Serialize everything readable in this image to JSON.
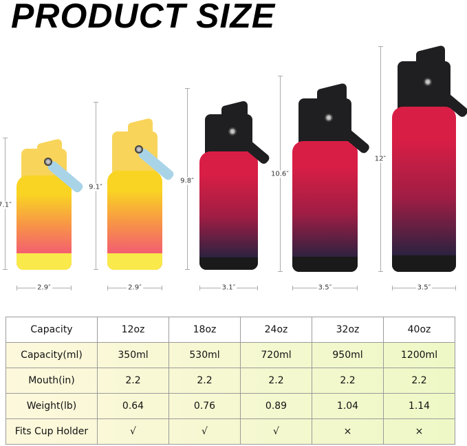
{
  "title": "PRODUCT SIZE",
  "bottles": [
    {
      "height": "7.1″",
      "width": "2.9″",
      "colors": {
        "top": "#f9d423",
        "mid": "#f7904a",
        "bottom": "#f2527a",
        "cap": "#f8d45a",
        "base": "#f9e94a",
        "strap": "#a9d4e8"
      }
    },
    {
      "height": "9.1″",
      "width": "2.9″",
      "colors": {
        "top": "#f9d423",
        "mid": "#f7904a",
        "bottom": "#f2527a",
        "cap": "#f8d45a",
        "base": "#f9e94a",
        "strap": "#a9d4e8"
      }
    },
    {
      "height": "9.8″",
      "width": "3.1″",
      "colors": {
        "top": "#d81e45",
        "mid": "#a01d44",
        "bottom": "#2b2240",
        "cap": "#1f1f22",
        "base": "#1a1a1a",
        "strap": "#1f1f22"
      }
    },
    {
      "height": "10.6″",
      "width": "3.5″",
      "colors": {
        "top": "#d81e45",
        "mid": "#a01d44",
        "bottom": "#2b2240",
        "cap": "#1f1f22",
        "base": "#1a1a1a",
        "strap": "#1f1f22"
      }
    },
    {
      "height": "12″",
      "width": "3.5″",
      "colors": {
        "top": "#d81e45",
        "mid": "#a01d44",
        "bottom": "#2b2240",
        "cap": "#1f1f22",
        "base": "#1a1a1a",
        "strap": "#1f1f22"
      }
    }
  ],
  "table": {
    "header": [
      "Capacity",
      "12oz",
      "18oz",
      "24oz",
      "32oz",
      "40oz"
    ],
    "rows": [
      [
        "Capacity(ml)",
        "350ml",
        "530ml",
        "720ml",
        "950ml",
        "1200ml"
      ],
      [
        "Mouth(in)",
        "2.2",
        "2.2",
        "2.2",
        "2.2",
        "2.2"
      ],
      [
        "Weight(lb)",
        "0.64",
        "0.76",
        "0.89",
        "1.04",
        "1.14"
      ],
      [
        "Fits Cup Holder",
        "√",
        "√",
        "√",
        "×",
        "×"
      ]
    ]
  }
}
